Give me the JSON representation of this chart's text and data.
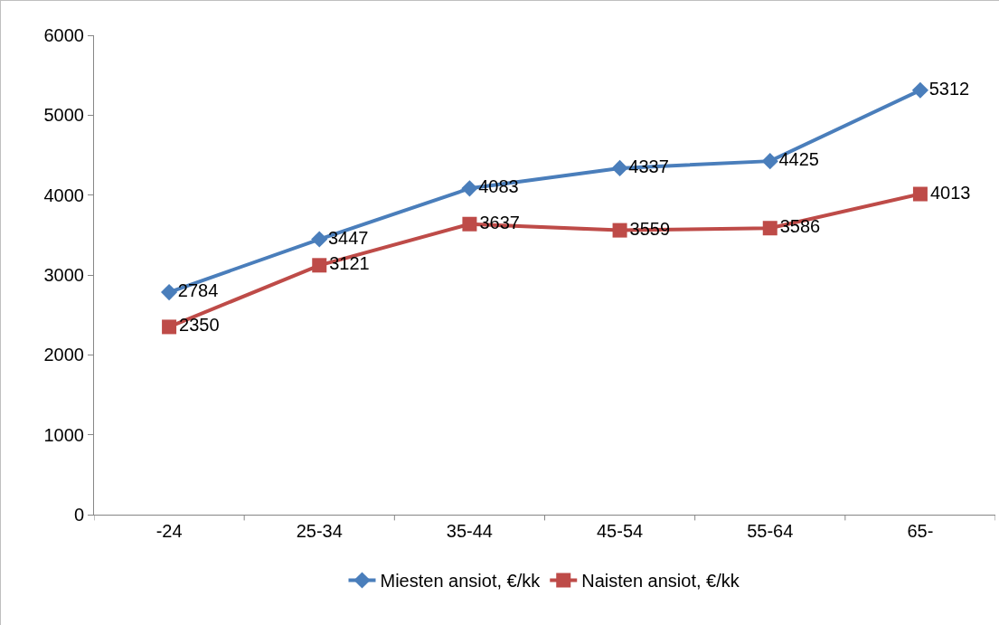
{
  "chart_data": {
    "type": "line",
    "categories": [
      "-24",
      "25-34",
      "35-44",
      "45-54",
      "55-64",
      "65-"
    ],
    "series": [
      {
        "name": "Miesten ansiot, €/kk",
        "color": "#4a7ebb",
        "marker": "diamond",
        "values": [
          2784,
          3447,
          4083,
          4337,
          4425,
          5312
        ]
      },
      {
        "name": "Naisten ansiot, €/kk",
        "color": "#be4b48",
        "marker": "square",
        "values": [
          2350,
          3121,
          3637,
          3559,
          3586,
          4013
        ]
      }
    ],
    "ylim": [
      0,
      6000
    ],
    "yticks": [
      0,
      1000,
      2000,
      3000,
      4000,
      5000,
      6000
    ],
    "grid": false,
    "legend": "bottom",
    "data_labels": true,
    "line_style": "solid"
  }
}
